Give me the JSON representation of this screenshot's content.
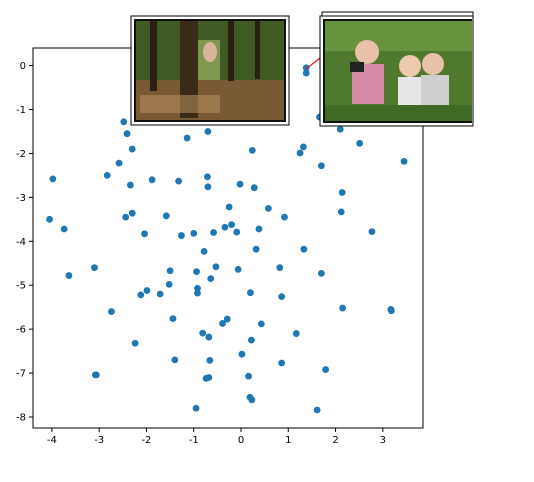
{
  "chart_data": {
    "type": "scatter",
    "title": "",
    "xlabel": "",
    "ylabel": "",
    "xlim": [
      -4.4,
      3.85
    ],
    "ylim": [
      -8.25,
      0.4
    ],
    "xticks": [
      -4,
      -3,
      -2,
      -1,
      0,
      1,
      2,
      3
    ],
    "yticks": [
      0,
      -1,
      -2,
      -3,
      -4,
      -5,
      -6,
      -7,
      -8
    ],
    "grid": false,
    "legend": "none",
    "marker_color": "#1f77b4",
    "annotation_arrow_color": "#d62728",
    "series": [
      {
        "points": [
          [
            -3.98,
            -2.58
          ],
          [
            -4.05,
            -3.5
          ],
          [
            -3.74,
            -3.72
          ],
          [
            -3.64,
            -4.78
          ],
          [
            -3.1,
            -4.6
          ],
          [
            -3.08,
            -7.04
          ],
          [
            -3.06,
            -7.04
          ],
          [
            -2.83,
            -2.5
          ],
          [
            -2.74,
            -5.6
          ],
          [
            -2.58,
            -2.22
          ],
          [
            -2.48,
            -1.28
          ],
          [
            -2.44,
            -3.45
          ],
          [
            -2.41,
            -1.55
          ],
          [
            -2.34,
            -2.72
          ],
          [
            -2.3,
            -1.9
          ],
          [
            -2.3,
            -3.36
          ],
          [
            -2.24,
            -6.32
          ],
          [
            -2.12,
            -5.22
          ],
          [
            -2.04,
            -3.83
          ],
          [
            -1.99,
            -5.12
          ],
          [
            -1.88,
            -2.6
          ],
          [
            -1.71,
            -5.2
          ],
          [
            -1.58,
            -3.42
          ],
          [
            -1.52,
            -4.98
          ],
          [
            -1.5,
            -4.67
          ],
          [
            -1.44,
            -5.76
          ],
          [
            -1.4,
            -6.7
          ],
          [
            -1.32,
            -2.63
          ],
          [
            -1.26,
            -3.87
          ],
          [
            -1.14,
            -1.65
          ],
          [
            -1.0,
            -3.82
          ],
          [
            -0.95,
            -7.8
          ],
          [
            -0.94,
            -4.69
          ],
          [
            -0.92,
            -5.18
          ],
          [
            -0.92,
            -5.07
          ],
          [
            -0.81,
            -6.09
          ],
          [
            -0.78,
            -4.23
          ],
          [
            -0.74,
            -7.12
          ],
          [
            -0.71,
            -2.53
          ],
          [
            -0.7,
            -2.76
          ],
          [
            -0.7,
            -1.5
          ],
          [
            -0.68,
            -6.18
          ],
          [
            -0.68,
            -7.1
          ],
          [
            -0.66,
            -6.71
          ],
          [
            -0.64,
            -4.85
          ],
          [
            -0.58,
            -3.8
          ],
          [
            -0.53,
            -4.58
          ],
          [
            -0.39,
            -5.87
          ],
          [
            -0.34,
            -3.68
          ],
          [
            -0.29,
            -5.77
          ],
          [
            -0.25,
            -3.22
          ],
          [
            -0.2,
            -3.62
          ],
          [
            -0.09,
            -3.79
          ],
          [
            -0.06,
            -4.64
          ],
          [
            -0.02,
            -2.7
          ],
          [
            0.02,
            -6.57
          ],
          [
            0.16,
            -7.07
          ],
          [
            0.19,
            -7.55
          ],
          [
            0.2,
            -5.17
          ],
          [
            0.22,
            -6.25
          ],
          [
            0.23,
            -7.61
          ],
          [
            0.24,
            -1.93
          ],
          [
            0.28,
            -2.78
          ],
          [
            0.32,
            -4.18
          ],
          [
            0.38,
            -3.72
          ],
          [
            0.43,
            -5.88
          ],
          [
            0.58,
            -3.25
          ],
          [
            0.82,
            -4.6
          ],
          [
            0.86,
            -5.26
          ],
          [
            0.86,
            -6.77
          ],
          [
            0.92,
            -3.45
          ],
          [
            1.17,
            -6.1
          ],
          [
            1.25,
            -1.99
          ],
          [
            1.32,
            -1.85
          ],
          [
            1.33,
            -4.18
          ],
          [
            1.38,
            -0.17
          ],
          [
            1.38,
            -0.05
          ],
          [
            1.61,
            -7.84
          ],
          [
            1.66,
            -1.17
          ],
          [
            1.7,
            -2.28
          ],
          [
            1.7,
            -4.73
          ],
          [
            1.79,
            -6.92
          ],
          [
            1.96,
            -1.0
          ],
          [
            2.1,
            -1.45
          ],
          [
            2.12,
            -3.33
          ],
          [
            2.14,
            -2.89
          ],
          [
            2.15,
            -5.52
          ],
          [
            2.34,
            -1.03
          ],
          [
            2.51,
            -1.77
          ],
          [
            2.77,
            -3.78
          ],
          [
            3.17,
            -5.55
          ],
          [
            3.18,
            -5.58
          ],
          [
            3.45,
            -2.18
          ]
        ]
      }
    ]
  }
}
